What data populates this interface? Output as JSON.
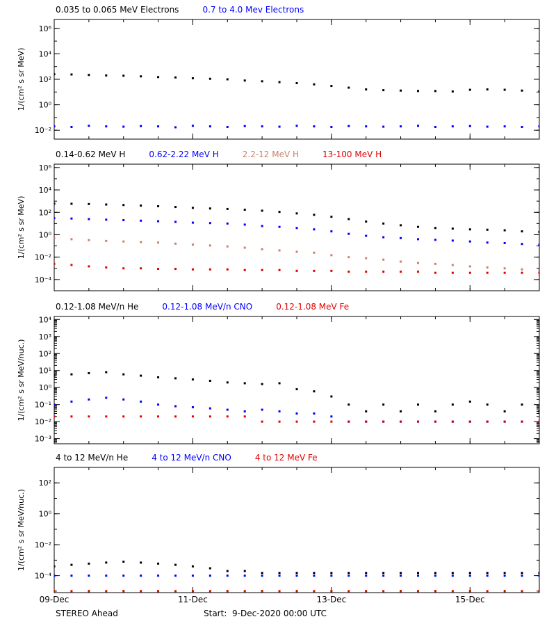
{
  "chart_data": [
    {
      "type": "scatter",
      "log": true,
      "xlim": [
        0,
        7
      ],
      "xticks": [
        0,
        2,
        4,
        6
      ],
      "ylabel": "1/(cm² s sr MeV)",
      "ylim": [
        0.002,
        5000000
      ],
      "yticks": [
        {
          "value": 0.01,
          "label": "10⁻²"
        },
        {
          "value": 1,
          "label": "10⁰"
        },
        {
          "value": 100,
          "label": "10²"
        },
        {
          "value": 10000,
          "label": "10⁴"
        },
        {
          "value": 1000000,
          "label": "10⁶"
        }
      ],
      "x": [
        0,
        0.25,
        0.5,
        0.75,
        1,
        1.25,
        1.5,
        1.75,
        2,
        2.25,
        2.5,
        2.75,
        3,
        3.25,
        3.5,
        3.75,
        4,
        4.25,
        4.5,
        4.75,
        5,
        5.25,
        5.5,
        5.75,
        6,
        6.25,
        6.5,
        6.75,
        7
      ],
      "series": [
        {
          "name": "0.035 to 0.065 MeV Electrons",
          "color": "#000000",
          "values": [
            250,
            240,
            220,
            200,
            190,
            170,
            150,
            140,
            120,
            110,
            100,
            80,
            70,
            60,
            50,
            40,
            30,
            22,
            16,
            14,
            13,
            12,
            12,
            11,
            15,
            16,
            15,
            13,
            11
          ]
        },
        {
          "name": "0.7 to 4.0 Mev Electrons",
          "color": "#0000ff",
          "values": [
            0.02,
            0.018,
            0.022,
            0.02,
            0.019,
            0.021,
            0.02,
            0.017,
            0.022,
            0.02,
            0.018,
            0.021,
            0.02,
            0.019,
            0.022,
            0.02,
            0.018,
            0.021,
            0.02,
            0.019,
            0.02,
            0.022,
            0.018,
            0.02,
            0.021,
            0.019,
            0.02,
            0.018,
            0.02
          ]
        }
      ]
    },
    {
      "type": "scatter",
      "log": true,
      "xlim": [
        0,
        7
      ],
      "xticks": [
        0,
        2,
        4,
        6
      ],
      "ylabel": "1/(cm² s sr MeV)",
      "ylim": [
        1e-05,
        2000000
      ],
      "yticks": [
        {
          "value": 0.0001,
          "label": "10⁻⁴"
        },
        {
          "value": 0.01,
          "label": "10⁻²"
        },
        {
          "value": 1,
          "label": "10⁰"
        },
        {
          "value": 100,
          "label": "10²"
        },
        {
          "value": 10000,
          "label": "10⁴"
        },
        {
          "value": 1000000,
          "label": "10⁶"
        }
      ],
      "x": [
        0,
        0.25,
        0.5,
        0.75,
        1,
        1.25,
        1.5,
        1.75,
        2,
        2.25,
        2.5,
        2.75,
        3,
        3.25,
        3.5,
        3.75,
        4,
        4.25,
        4.5,
        4.75,
        5,
        5.25,
        5.5,
        5.75,
        6,
        6.25,
        6.5,
        6.75,
        7
      ],
      "series": [
        {
          "name": "0.14-0.62 MeV H",
          "color": "#000000",
          "values": [
            600,
            580,
            550,
            500,
            450,
            400,
            350,
            300,
            250,
            220,
            200,
            170,
            140,
            110,
            80,
            60,
            40,
            25,
            15,
            10,
            7,
            5,
            4,
            3.5,
            3,
            2.8,
            2.5,
            2,
            1.8
          ]
        },
        {
          "name": "0.62-2.22 MeV H",
          "color": "#0000ff",
          "values": [
            30,
            28,
            25,
            22,
            20,
            18,
            16,
            14,
            12,
            11,
            10,
            8,
            6,
            5,
            4,
            3,
            2,
            1.2,
            0.8,
            0.6,
            0.5,
            0.4,
            0.35,
            0.3,
            0.25,
            0.2,
            0.18,
            0.15,
            0.13
          ]
        },
        {
          "name": "2.2-12 MeV H",
          "color": "#c8826a",
          "values": [
            0.5,
            0.4,
            0.33,
            0.28,
            0.25,
            0.22,
            0.2,
            0.16,
            0.13,
            0.11,
            0.09,
            0.07,
            0.05,
            0.04,
            0.03,
            0.025,
            0.015,
            0.01,
            0.008,
            0.006,
            0.004,
            0.003,
            0.0025,
            0.002,
            0.0015,
            0.0012,
            0.001,
            0.0008,
            0.0007
          ]
        },
        {
          "name": "13-100 MeV H",
          "color": "#e00000",
          "values": [
            0.0025,
            0.002,
            0.0015,
            0.0012,
            0.001,
            0.001,
            0.0009,
            0.0009,
            0.0008,
            0.0008,
            0.0008,
            0.0007,
            0.0007,
            0.0007,
            0.0006,
            0.0006,
            0.0006,
            0.0005,
            0.0005,
            0.0005,
            0.0005,
            0.0005,
            0.0004,
            0.0004,
            0.0004,
            0.0004,
            0.0004,
            0.0004,
            0.0004
          ]
        }
      ]
    },
    {
      "type": "scatter",
      "log": true,
      "xlim": [
        0,
        7
      ],
      "xticks": [
        0,
        2,
        4,
        6
      ],
      "ylabel": "1/(cm² s sr MeV/nuc.)",
      "ylim": [
        0.0005,
        15000
      ],
      "yticks": [
        {
          "value": 0.001,
          "label": "10⁻³"
        },
        {
          "value": 0.01,
          "label": "10⁻²"
        },
        {
          "value": 0.1,
          "label": "10⁻¹"
        },
        {
          "value": 1,
          "label": "10⁰"
        },
        {
          "value": 10,
          "label": "10¹"
        },
        {
          "value": 100,
          "label": "10²"
        },
        {
          "value": 1000,
          "label": "10³"
        },
        {
          "value": 10000,
          "label": "10⁴"
        }
      ],
      "x": [
        0,
        0.25,
        0.5,
        0.75,
        1,
        1.25,
        1.5,
        1.75,
        2,
        2.25,
        2.5,
        2.75,
        3,
        3.25,
        3.5,
        3.75,
        4,
        4.25,
        4.5,
        4.75,
        5,
        5.25,
        5.5,
        5.75,
        6,
        6.25,
        6.5,
        6.75,
        7
      ],
      "series": [
        {
          "name": "0.12-1.08 MeV/n He",
          "color": "#000000",
          "values": [
            5,
            6,
            7,
            8,
            6,
            5,
            4,
            3.5,
            3,
            2.5,
            2,
            1.8,
            1.6,
            1.8,
            0.8,
            0.6,
            0.3,
            0.1,
            0.04,
            0.1,
            0.04,
            0.1,
            0.04,
            0.1,
            0.15,
            0.1,
            0.04,
            0.1,
            0.04
          ]
        },
        {
          "name": "0.12-1.08 MeV/n CNO",
          "color": "#0000ff",
          "values": [
            0.1,
            0.15,
            0.2,
            0.25,
            0.2,
            0.15,
            0.1,
            0.08,
            0.07,
            0.06,
            0.05,
            0.04,
            0.05,
            0.04,
            0.03,
            0.03,
            0.02,
            0.01,
            0.01,
            0.01,
            0.01,
            0.01,
            0.01,
            0.01,
            0.01,
            0.01,
            0.01,
            0.01,
            0.01
          ]
        },
        {
          "name": "0.12-1.08 MeV Fe",
          "color": "#e00000",
          "values": [
            0.02,
            0.02,
            0.02,
            0.02,
            0.02,
            0.02,
            0.02,
            0.02,
            0.02,
            0.02,
            0.02,
            0.02,
            0.01,
            0.01,
            0.01,
            0.01,
            0.01,
            0.01,
            0.01,
            0.01,
            0.01,
            0.01,
            0.01,
            0.01,
            0.01,
            0.01,
            0.01,
            0.01,
            0.01
          ]
        }
      ]
    },
    {
      "type": "scatter",
      "log": true,
      "xlim": [
        0,
        7
      ],
      "xticks": [
        {
          "value": 0,
          "label": "09-Dec"
        },
        {
          "value": 2,
          "label": "11-Dec"
        },
        {
          "value": 4,
          "label": "13-Dec"
        },
        {
          "value": 6,
          "label": "15-Dec"
        }
      ],
      "ylabel": "1/(cm² s sr MeV/nuc.)",
      "ylim": [
        8e-06,
        1000
      ],
      "yticks": [
        {
          "value": 0.0001,
          "label": "10⁻⁴"
        },
        {
          "value": 0.01,
          "label": "10⁻²"
        },
        {
          "value": 1,
          "label": "10⁰"
        },
        {
          "value": 100,
          "label": "10²"
        }
      ],
      "x": [
        0,
        0.25,
        0.5,
        0.75,
        1,
        1.25,
        1.5,
        1.75,
        2,
        2.25,
        2.5,
        2.75,
        3,
        3.25,
        3.5,
        3.75,
        4,
        4.25,
        4.5,
        4.75,
        5,
        5.25,
        5.5,
        5.75,
        6,
        6.25,
        6.5,
        6.75,
        7
      ],
      "series": [
        {
          "name": "4 to 12 MeV/n He",
          "color": "#000000",
          "values": [
            0.0004,
            0.0005,
            0.0006,
            0.0007,
            0.0008,
            0.0007,
            0.0006,
            0.0005,
            0.0004,
            0.0003,
            0.0002,
            0.0002,
            0.00015,
            0.00015,
            0.00015,
            0.00015,
            0.00015,
            0.00015,
            0.00015,
            0.00015,
            0.00015,
            0.00015,
            0.00015,
            0.00015,
            0.00015,
            0.00015,
            0.00015,
            0.00015,
            0.00015
          ]
        },
        {
          "name": "4 to 12 MeV/n CNO",
          "color": "#0000ff",
          "values": [
            0.0001,
            0.0001,
            0.0001,
            0.0001,
            0.0001,
            0.0001,
            0.0001,
            0.0001,
            0.0001,
            0.0001,
            0.0001,
            0.0001,
            0.0001,
            0.0001,
            0.0001,
            0.0001,
            0.0001,
            0.0001,
            0.0001,
            0.0001,
            0.0001,
            0.0001,
            0.0001,
            0.0001,
            0.0001,
            0.0001,
            0.0001,
            0.0001,
            0.0001
          ]
        },
        {
          "name": "4 to 12 MeV Fe",
          "color": "#e00000",
          "values": [
            1e-05,
            1e-05,
            1e-05,
            1e-05,
            1e-05,
            1e-05,
            1e-05,
            1e-05,
            1e-05,
            1e-05,
            1e-05,
            1e-05,
            1e-05,
            1e-05,
            1e-05,
            1e-05,
            1e-05,
            1e-05,
            1e-05,
            1e-05,
            1e-05,
            1e-05,
            1e-05,
            1e-05,
            1e-05,
            1e-05,
            1e-05,
            1e-05,
            1e-05
          ]
        }
      ]
    }
  ],
  "footer": {
    "mission": "STEREO Ahead",
    "start": "Start:  9-Dec-2020 00:00 UTC"
  }
}
